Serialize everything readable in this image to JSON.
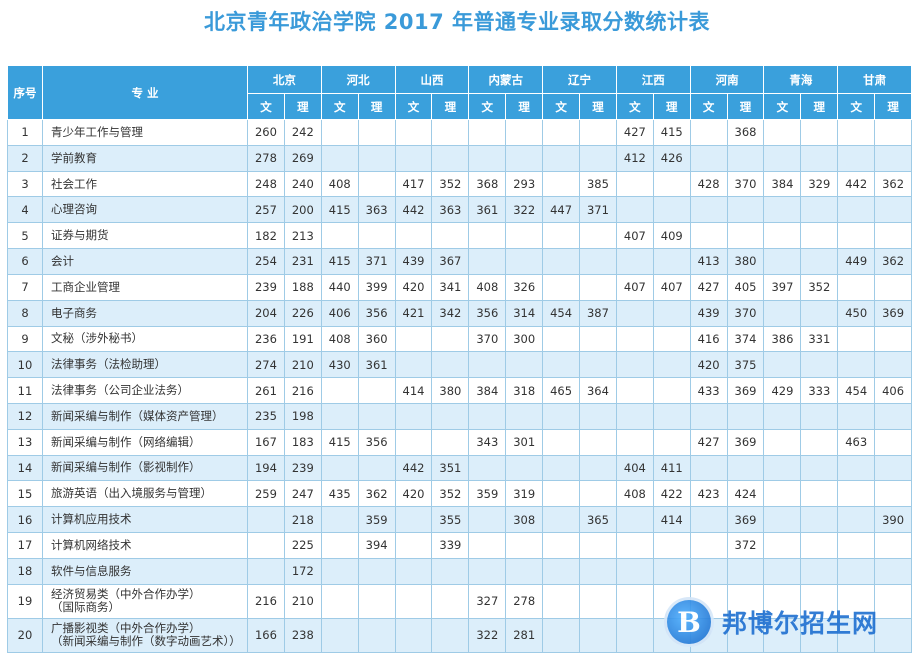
{
  "title": "北京青年政治学院 2017 年普通专业录取分数统计表",
  "header": {
    "index_label": "序号",
    "major_label": "专 业",
    "provinces": [
      "北京",
      "河北",
      "山西",
      "内蒙古",
      "辽宁",
      "江西",
      "河南",
      "青海",
      "甘肃"
    ],
    "wen": "文",
    "li": "理"
  },
  "rows": [
    {
      "no": "1",
      "major": "青少年工作与管理",
      "scores": [
        "260",
        "242",
        "",
        "",
        "",
        "",
        "",
        "",
        "",
        "",
        "427",
        "415",
        "",
        "368",
        "",
        "",
        "",
        ""
      ]
    },
    {
      "no": "2",
      "major": "学前教育",
      "scores": [
        "278",
        "269",
        "",
        "",
        "",
        "",
        "",
        "",
        "",
        "",
        "412",
        "426",
        "",
        "",
        "",
        "",
        "",
        ""
      ]
    },
    {
      "no": "3",
      "major": "社会工作",
      "scores": [
        "248",
        "240",
        "408",
        "",
        "417",
        "352",
        "368",
        "293",
        "",
        "385",
        "",
        "",
        "428",
        "370",
        "384",
        "329",
        "442",
        "362"
      ]
    },
    {
      "no": "4",
      "major": "心理咨询",
      "scores": [
        "257",
        "200",
        "415",
        "363",
        "442",
        "363",
        "361",
        "322",
        "447",
        "371",
        "",
        "",
        "",
        "",
        "",
        "",
        "",
        ""
      ]
    },
    {
      "no": "5",
      "major": "证券与期货",
      "scores": [
        "182",
        "213",
        "",
        "",
        "",
        "",
        "",
        "",
        "",
        "",
        "407",
        "409",
        "",
        "",
        "",
        "",
        "",
        ""
      ]
    },
    {
      "no": "6",
      "major": "会计",
      "scores": [
        "254",
        "231",
        "415",
        "371",
        "439",
        "367",
        "",
        "",
        "",
        "",
        "",
        "",
        "413",
        "380",
        "",
        "",
        "449",
        "362"
      ]
    },
    {
      "no": "7",
      "major": "工商企业管理",
      "scores": [
        "239",
        "188",
        "440",
        "399",
        "420",
        "341",
        "408",
        "326",
        "",
        "",
        "407",
        "407",
        "427",
        "405",
        "397",
        "352",
        "",
        ""
      ]
    },
    {
      "no": "8",
      "major": "电子商务",
      "scores": [
        "204",
        "226",
        "406",
        "356",
        "421",
        "342",
        "356",
        "314",
        "454",
        "387",
        "",
        "",
        "439",
        "370",
        "",
        "",
        "450",
        "369"
      ]
    },
    {
      "no": "9",
      "major": "文秘（涉外秘书）",
      "scores": [
        "236",
        "191",
        "408",
        "360",
        "",
        "",
        "370",
        "300",
        "",
        "",
        "",
        "",
        "416",
        "374",
        "386",
        "331",
        "",
        ""
      ]
    },
    {
      "no": "10",
      "major": "法律事务（法检助理）",
      "scores": [
        "274",
        "210",
        "430",
        "361",
        "",
        "",
        "",
        "",
        "",
        "",
        "",
        "",
        "420",
        "375",
        "",
        "",
        "",
        ""
      ]
    },
    {
      "no": "11",
      "major": "法律事务（公司企业法务）",
      "scores": [
        "261",
        "216",
        "",
        "",
        "414",
        "380",
        "384",
        "318",
        "465",
        "364",
        "",
        "",
        "433",
        "369",
        "429",
        "333",
        "454",
        "406"
      ]
    },
    {
      "no": "12",
      "major": "新闻采编与制作（媒体资产管理）",
      "scores": [
        "235",
        "198",
        "",
        "",
        "",
        "",
        "",
        "",
        "",
        "",
        "",
        "",
        "",
        "",
        "",
        "",
        "",
        ""
      ]
    },
    {
      "no": "13",
      "major": "新闻采编与制作（网络编辑）",
      "scores": [
        "167",
        "183",
        "415",
        "356",
        "",
        "",
        "343",
        "301",
        "",
        "",
        "",
        "",
        "427",
        "369",
        "",
        "",
        "463",
        ""
      ]
    },
    {
      "no": "14",
      "major": "新闻采编与制作（影视制作）",
      "scores": [
        "194",
        "239",
        "",
        "",
        "442",
        "351",
        "",
        "",
        "",
        "",
        "404",
        "411",
        "",
        "",
        "",
        "",
        "",
        ""
      ]
    },
    {
      "no": "15",
      "major": "旅游英语（出入境服务与管理）",
      "scores": [
        "259",
        "247",
        "435",
        "362",
        "420",
        "352",
        "359",
        "319",
        "",
        "",
        "408",
        "422",
        "423",
        "424",
        "",
        "",
        "",
        ""
      ]
    },
    {
      "no": "16",
      "major": "计算机应用技术",
      "scores": [
        "",
        "218",
        "",
        "359",
        "",
        "355",
        "",
        "308",
        "",
        "365",
        "",
        "414",
        "",
        "369",
        "",
        "",
        "",
        "390"
      ]
    },
    {
      "no": "17",
      "major": "计算机网络技术",
      "scores": [
        "",
        "225",
        "",
        "394",
        "",
        "339",
        "",
        "",
        "",
        "",
        "",
        "",
        "",
        "372",
        "",
        "",
        "",
        ""
      ]
    },
    {
      "no": "18",
      "major": "软件与信息服务",
      "scores": [
        "",
        "172",
        "",
        "",
        "",
        "",
        "",
        "",
        "",
        "",
        "",
        "",
        "",
        "",
        "",
        "",
        "",
        ""
      ]
    },
    {
      "no": "19",
      "major": "经济贸易类（中外合作办学）\n（国际商务）",
      "scores": [
        "216",
        "210",
        "",
        "",
        "",
        "",
        "327",
        "278",
        "",
        "",
        "",
        "",
        "",
        "",
        "",
        "",
        "",
        ""
      ]
    },
    {
      "no": "20",
      "major": "广播影视类（中外合作办学）\n（新闻采编与制作（数字动画艺术））",
      "scores": [
        "166",
        "238",
        "",
        "",
        "",
        "",
        "322",
        "281",
        "",
        "",
        "",
        "",
        "",
        "",
        "",
        "",
        "",
        ""
      ]
    }
  ],
  "watermark": {
    "mark": "B",
    "text": "邦博尔招生网"
  },
  "colors": {
    "title": "#3a9ad9",
    "header_bg": "#3aa0dc",
    "stripe": "#dceefa"
  }
}
